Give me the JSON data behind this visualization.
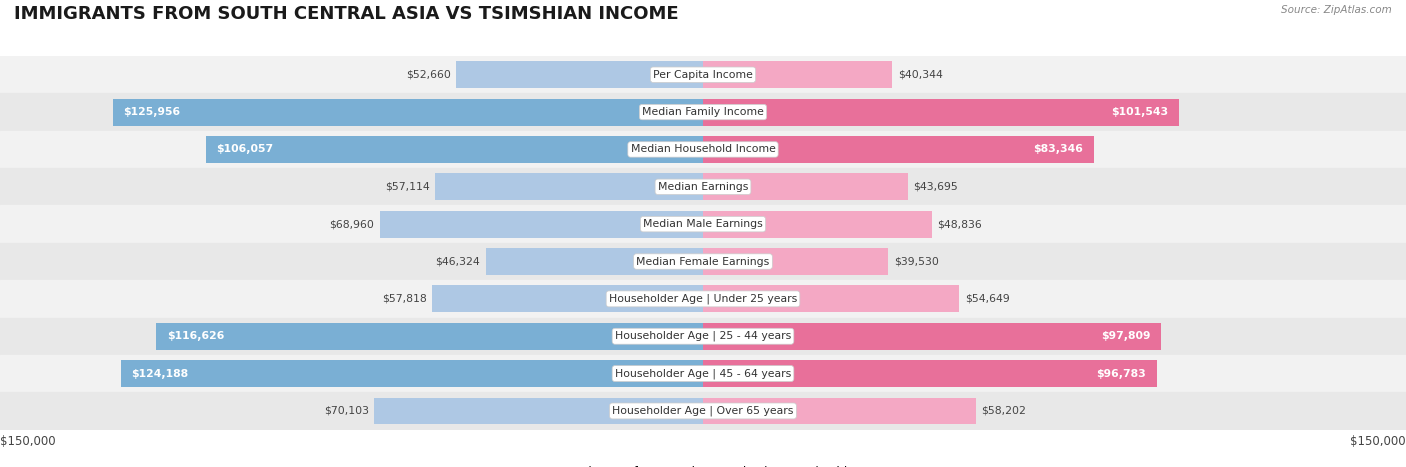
{
  "title": "IMMIGRANTS FROM SOUTH CENTRAL ASIA VS TSIMSHIAN INCOME",
  "source": "Source: ZipAtlas.com",
  "categories": [
    "Per Capita Income",
    "Median Family Income",
    "Median Household Income",
    "Median Earnings",
    "Median Male Earnings",
    "Median Female Earnings",
    "Householder Age | Under 25 years",
    "Householder Age | 25 - 44 years",
    "Householder Age | 45 - 64 years",
    "Householder Age | Over 65 years"
  ],
  "left_values": [
    52660,
    125956,
    106057,
    57114,
    68960,
    46324,
    57818,
    116626,
    124188,
    70103
  ],
  "right_values": [
    40344,
    101543,
    83346,
    43695,
    48836,
    39530,
    54649,
    97809,
    96783,
    58202
  ],
  "left_labels": [
    "$52,660",
    "$125,956",
    "$106,057",
    "$57,114",
    "$68,960",
    "$46,324",
    "$57,818",
    "$116,626",
    "$124,188",
    "$70,103"
  ],
  "right_labels": [
    "$40,344",
    "$101,543",
    "$83,346",
    "$43,695",
    "$48,836",
    "$39,530",
    "$54,649",
    "$97,809",
    "$96,783",
    "$58,202"
  ],
  "left_color_large": "#7aafd4",
  "left_color_small": "#aec8e4",
  "right_color_large": "#e8709a",
  "right_color_small": "#f4a8c4",
  "row_bg_odd": "#f2f2f2",
  "row_bg_even": "#e8e8e8",
  "max_value": 150000,
  "legend_left": "Immigrants from South Central Asia",
  "legend_right": "Tsimshian",
  "title_fontsize": 13,
  "axis_label_fontsize": 8.5,
  "bar_label_fontsize": 7.8,
  "cat_label_fontsize": 7.8,
  "large_threshold": 80000
}
